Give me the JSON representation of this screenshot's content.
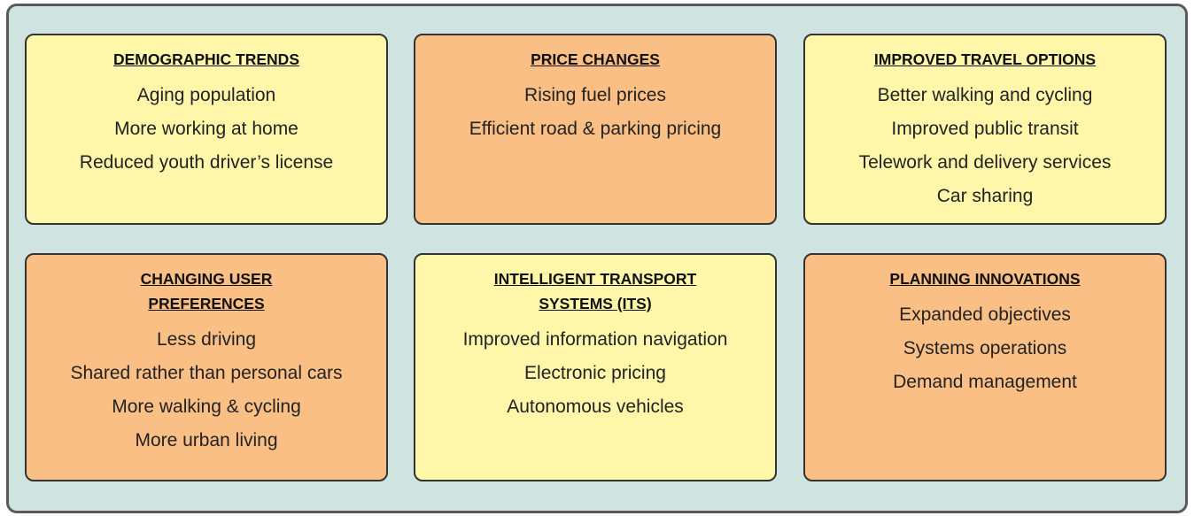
{
  "boxes": [
    {
      "title": "DEMOGRAPHIC TRENDS",
      "items": [
        "Aging population",
        "More working at home",
        "Reduced youth driver’s license"
      ]
    },
    {
      "title": "PRICE CHANGES",
      "items": [
        "Rising fuel prices",
        "Efficient road & parking pricing"
      ]
    },
    {
      "title": "IMPROVED TRAVEL OPTIONS",
      "items": [
        "Better walking and cycling",
        "Improved public transit",
        "Telework and delivery services",
        "Car sharing"
      ]
    },
    {
      "title": "CHANGING USER PREFERENCES",
      "items": [
        "Less driving",
        "Shared rather than personal cars",
        "More walking & cycling",
        "More urban living"
      ]
    },
    {
      "title": "INTELLIGENT TRANSPORT SYSTEMS (ITS)",
      "items": [
        "Improved information navigation",
        "Electronic pricing",
        "Autonomous vehicles"
      ]
    },
    {
      "title": "PLANNING INNOVATIONS",
      "items": [
        "Expanded objectives",
        "Systems operations",
        "Demand management"
      ]
    }
  ]
}
